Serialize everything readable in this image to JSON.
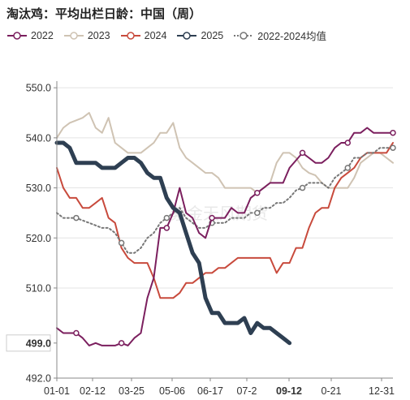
{
  "header": {
    "title": "淘汰鸡：平均出栏日龄：中国（周）"
  },
  "chart_data": {
    "type": "line",
    "title": "淘汰鸡：平均出栏日龄：中国（周）",
    "x_ticks": [
      "01-01",
      "02-12",
      "03-25",
      "05-06",
      "06-17",
      "07-2",
      "09-12",
      "0-21",
      "12-31"
    ],
    "y_ticks": [
      "550.0",
      "540.0",
      "530.0",
      "520.0",
      "510.0",
      "499.0",
      "492.0"
    ],
    "highlight_x_label": "09-12",
    "highlight_y_label": "499.0",
    "ylim": [
      492,
      551
    ],
    "x_range_weeks": [
      1,
      53
    ],
    "watermark": "紫金天风期货",
    "series": [
      {
        "name": "2022",
        "color": "#7b1f5e",
        "style": "solid-marker",
        "x": [
          1,
          2,
          3,
          4,
          5,
          6,
          7,
          8,
          9,
          10,
          11,
          12,
          13,
          14,
          15,
          16,
          17,
          18,
          19,
          20,
          21,
          22,
          23,
          24,
          25,
          26,
          27,
          28,
          29,
          30,
          31,
          32,
          33,
          34,
          35,
          36,
          37,
          38,
          39,
          40,
          41,
          42,
          43,
          44,
          45,
          46,
          47,
          48,
          49,
          50,
          51,
          52,
          53
        ],
        "y": [
          502,
          501,
          501,
          501,
          500,
          498.5,
          499,
          498.5,
          498.5,
          498.5,
          499,
          498.5,
          500,
          501,
          508,
          512,
          522,
          522,
          525,
          530,
          525,
          524,
          521,
          520,
          524,
          524,
          524,
          526,
          525,
          525,
          528,
          529,
          530,
          531,
          531,
          531,
          534,
          535.5,
          537,
          536,
          535,
          535,
          536,
          538,
          539,
          539,
          541,
          541,
          542,
          541,
          541,
          541,
          541
        ]
      },
      {
        "name": "2023",
        "color": "#cfc3b3",
        "style": "solid",
        "x": [
          1,
          2,
          3,
          4,
          5,
          6,
          7,
          8,
          9,
          10,
          11,
          12,
          13,
          14,
          15,
          16,
          17,
          18,
          19,
          20,
          21,
          22,
          23,
          24,
          25,
          26,
          27,
          28,
          29,
          30,
          31,
          32,
          33,
          34,
          35,
          36,
          37,
          38,
          39,
          40,
          41,
          42,
          43,
          44,
          45,
          46,
          47,
          48,
          49,
          50,
          51,
          52,
          53
        ],
        "y": [
          540,
          542,
          543,
          543.5,
          544,
          545,
          542,
          541,
          544,
          539,
          538,
          537,
          537,
          537,
          538,
          539,
          541,
          541,
          543,
          538,
          536,
          535,
          534,
          533,
          533,
          532,
          530,
          530,
          530,
          530,
          530,
          529,
          530,
          531,
          535,
          537,
          537,
          536,
          534,
          533,
          532.5,
          531,
          530,
          530,
          530,
          530,
          532,
          535,
          536,
          537,
          537,
          536,
          535
        ]
      },
      {
        "name": "2024",
        "color": "#c84a3c",
        "style": "solid",
        "x": [
          1,
          2,
          3,
          4,
          5,
          6,
          7,
          8,
          9,
          10,
          11,
          12,
          13,
          14,
          15,
          16,
          17,
          18,
          19,
          20,
          21,
          22,
          23,
          24,
          25,
          26,
          27,
          28,
          29,
          30,
          31,
          32,
          33,
          34,
          35,
          36,
          37,
          38,
          39,
          40,
          41,
          42,
          43,
          44,
          45,
          46,
          47,
          48,
          49,
          50,
          51,
          52,
          53
        ],
        "y": [
          534,
          530,
          528,
          528,
          526,
          526,
          527,
          528,
          524,
          523,
          518,
          516,
          515,
          515,
          515,
          512,
          508,
          508,
          508,
          509,
          511,
          511,
          512,
          513,
          513,
          514,
          514,
          515,
          516,
          516,
          516,
          516,
          516,
          516,
          513,
          515,
          515,
          518,
          518,
          522,
          525,
          526,
          526,
          530,
          532,
          533,
          534,
          536,
          537,
          537,
          537,
          537,
          539
        ]
      },
      {
        "name": "2025",
        "color": "#2e3f52",
        "style": "thick",
        "x": [
          1,
          2,
          3,
          4,
          5,
          6,
          7,
          8,
          9,
          10,
          11,
          12,
          13,
          14,
          15,
          16,
          17,
          18,
          19,
          20,
          21,
          22,
          23,
          24,
          25,
          26,
          27,
          28,
          29,
          30,
          31,
          32,
          33,
          34,
          35,
          36,
          37
        ],
        "y": [
          539,
          539,
          538,
          535,
          535,
          535,
          535,
          534,
          534,
          534,
          535,
          536,
          536,
          535,
          533,
          532,
          532,
          528,
          526,
          525,
          521,
          517,
          515,
          508,
          505,
          505,
          503,
          503,
          503,
          504,
          501,
          503,
          502,
          502,
          501,
          500,
          499
        ]
      },
      {
        "name": "2022-2024均值",
        "color": "#777777",
        "style": "dotted-marker",
        "x": [
          1,
          2,
          3,
          4,
          5,
          6,
          7,
          8,
          9,
          10,
          11,
          12,
          13,
          14,
          15,
          16,
          17,
          18,
          19,
          20,
          21,
          22,
          23,
          24,
          25,
          26,
          27,
          28,
          29,
          30,
          31,
          32,
          33,
          34,
          35,
          36,
          37,
          38,
          39,
          40,
          41,
          42,
          43,
          44,
          45,
          46,
          47,
          48,
          49,
          50,
          51,
          52,
          53
        ],
        "y": [
          525,
          524,
          524,
          524,
          523.5,
          523,
          522.5,
          522,
          522,
          521,
          519,
          517,
          517,
          518,
          520,
          521,
          523,
          524,
          525,
          526,
          524,
          523,
          522,
          522,
          523,
          523,
          523,
          524,
          524,
          524,
          525,
          525,
          526,
          526,
          527,
          527,
          528,
          529.5,
          530,
          531,
          531,
          531,
          530,
          532,
          533,
          534,
          536,
          536,
          537,
          537,
          538,
          538,
          538
        ]
      }
    ]
  }
}
